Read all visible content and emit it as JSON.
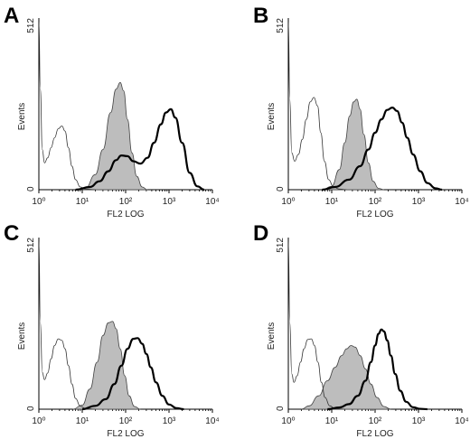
{
  "chart_data": [
    {
      "panel": "A",
      "type": "area",
      "xlabel": "FL2 LOG",
      "ylabel": "Events",
      "xscale": "log",
      "xlim": [
        1,
        10000
      ],
      "ylim": [
        0,
        512
      ],
      "x_ticks": [
        "10⁰",
        "10¹",
        "10²",
        "10³",
        "10⁴"
      ],
      "y_ticks": [
        "0",
        "512"
      ],
      "series": [
        {
          "style": "thin-outline",
          "x": [
            1,
            1.08,
            1.2,
            1.35,
            1.6,
            1.9,
            2.3,
            2.8,
            3.4,
            4.0,
            4.8,
            5.8,
            7,
            9,
            12,
            20
          ],
          "y": [
            500,
            300,
            120,
            80,
            95,
            125,
            155,
            182,
            190,
            175,
            125,
            70,
            30,
            8,
            2,
            0
          ]
        },
        {
          "style": "gray-filled",
          "x": [
            8,
            12,
            20,
            30,
            45,
            60,
            75,
            90,
            110,
            140,
            180,
            240,
            320
          ],
          "y": [
            0,
            6,
            45,
            120,
            230,
            300,
            320,
            295,
            210,
            110,
            40,
            8,
            0
          ]
        },
        {
          "style": "bold-outline",
          "x": [
            7,
            15,
            25,
            40,
            60,
            80,
            110,
            150,
            220,
            320,
            450,
            650,
            850,
            1100,
            1400,
            2000,
            3000,
            4500,
            6500
          ],
          "y": [
            0,
            8,
            25,
            55,
            88,
            102,
            100,
            85,
            78,
            95,
            140,
            195,
            230,
            240,
            215,
            140,
            50,
            10,
            0
          ]
        }
      ]
    },
    {
      "panel": "B",
      "type": "area",
      "xlabel": "FL2 LOG",
      "ylabel": "Events",
      "xscale": "log",
      "xlim": [
        1,
        10000
      ],
      "ylim": [
        0,
        512
      ],
      "x_ticks": [
        "10⁰",
        "10¹",
        "10²",
        "10³",
        "10⁴"
      ],
      "y_ticks": [
        "0",
        "512"
      ],
      "series": [
        {
          "style": "thin-outline",
          "x": [
            1,
            1.08,
            1.2,
            1.4,
            1.7,
            2.1,
            2.6,
            3.2,
            3.9,
            4.7,
            5.6,
            6.8,
            8.5,
            11,
            15,
            22
          ],
          "y": [
            500,
            270,
            110,
            85,
            105,
            150,
            210,
            262,
            275,
            250,
            170,
            85,
            30,
            8,
            2,
            0
          ]
        },
        {
          "style": "gray-filled",
          "x": [
            6,
            10,
            15,
            20,
            26,
            32,
            38,
            45,
            55,
            70,
            90,
            120,
            160
          ],
          "y": [
            0,
            10,
            60,
            140,
            220,
            262,
            270,
            240,
            165,
            80,
            25,
            4,
            0
          ]
        },
        {
          "style": "bold-outline",
          "x": [
            6,
            12,
            25,
            45,
            70,
            100,
            140,
            190,
            250,
            320,
            420,
            550,
            750,
            1100,
            1600,
            2500,
            3500
          ],
          "y": [
            0,
            8,
            30,
            70,
            120,
            170,
            210,
            238,
            245,
            235,
            200,
            155,
            105,
            55,
            20,
            4,
            0
          ]
        }
      ]
    },
    {
      "panel": "C",
      "type": "area",
      "xlabel": "FL2 LOG",
      "ylabel": "Events",
      "xscale": "log",
      "xlim": [
        1,
        10000
      ],
      "ylim": [
        0,
        512
      ],
      "x_ticks": [
        "10⁰",
        "10¹",
        "10²",
        "10³",
        "10⁴"
      ],
      "y_ticks": [
        "0",
        "512"
      ],
      "series": [
        {
          "style": "thin-outline",
          "x": [
            1,
            1.08,
            1.2,
            1.35,
            1.6,
            1.9,
            2.3,
            2.8,
            3.4,
            4.0,
            4.8,
            5.8,
            7,
            9,
            12,
            20
          ],
          "y": [
            500,
            260,
            110,
            88,
            108,
            150,
            190,
            210,
            205,
            180,
            130,
            75,
            32,
            9,
            2,
            0
          ]
        },
        {
          "style": "gray-filled",
          "x": [
            6,
            10,
            15,
            22,
            30,
            40,
            50,
            60,
            75,
            95,
            120,
            160,
            220
          ],
          "y": [
            0,
            12,
            60,
            140,
            220,
            258,
            262,
            240,
            180,
            100,
            40,
            8,
            0
          ]
        },
        {
          "style": "bold-outline",
          "x": [
            10,
            20,
            35,
            55,
            80,
            110,
            150,
            190,
            240,
            300,
            380,
            500,
            700,
            1000,
            1500,
            2200
          ],
          "y": [
            0,
            10,
            30,
            75,
            130,
            180,
            210,
            212,
            195,
            165,
            125,
            80,
            40,
            14,
            3,
            0
          ]
        }
      ]
    },
    {
      "panel": "D",
      "type": "area",
      "xlabel": "FL2 LOG",
      "ylabel": "Events",
      "xscale": "log",
      "xlim": [
        1,
        10000
      ],
      "ylim": [
        0,
        512
      ],
      "x_ticks": [
        "10⁰",
        "10¹",
        "10²",
        "10³",
        "10⁴"
      ],
      "y_ticks": [
        "0",
        "512"
      ],
      "series": [
        {
          "style": "thin-outline",
          "x": [
            1,
            1.08,
            1.2,
            1.35,
            1.6,
            1.9,
            2.3,
            2.8,
            3.4,
            4.0,
            4.8,
            5.8,
            7,
            9,
            12,
            20
          ],
          "y": [
            500,
            260,
            105,
            80,
            100,
            140,
            180,
            208,
            210,
            190,
            140,
            80,
            35,
            10,
            2,
            0
          ]
        },
        {
          "style": "gray-filled",
          "x": [
            2,
            3,
            5,
            8,
            12,
            17,
            22,
            28,
            35,
            45,
            60,
            80,
            110,
            160,
            230
          ],
          "y": [
            0,
            10,
            40,
            85,
            125,
            160,
            180,
            190,
            185,
            160,
            120,
            75,
            35,
            8,
            0
          ]
        },
        {
          "style": "bold-outline",
          "x": [
            8,
            15,
            25,
            40,
            60,
            80,
            100,
            120,
            140,
            160,
            190,
            230,
            290,
            380,
            520,
            750,
            1100,
            1600
          ],
          "y": [
            0,
            5,
            15,
            40,
            85,
            140,
            190,
            225,
            238,
            232,
            205,
            160,
            105,
            55,
            22,
            6,
            1,
            0
          ]
        }
      ]
    }
  ]
}
